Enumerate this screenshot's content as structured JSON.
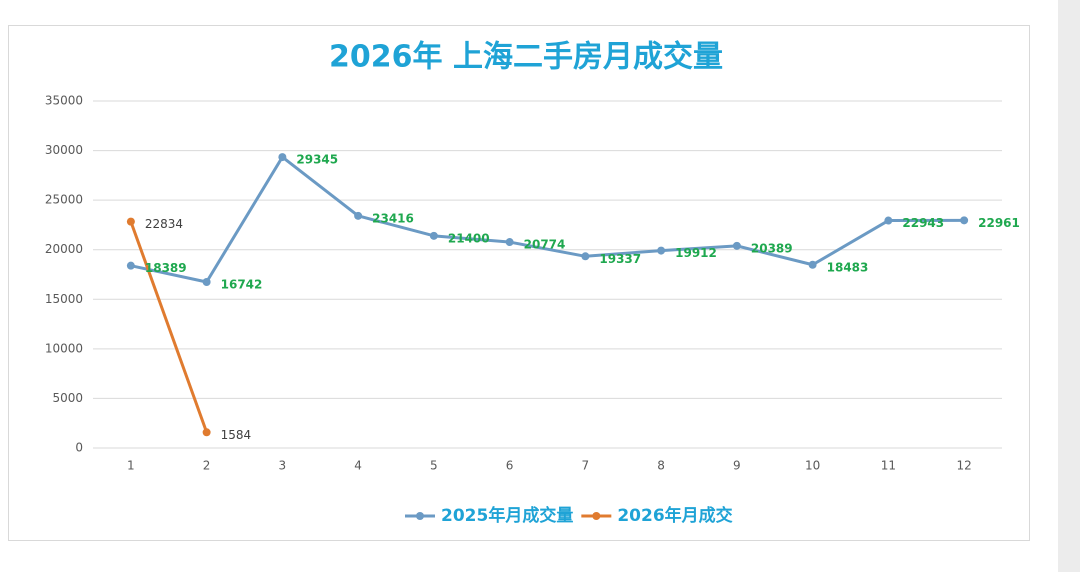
{
  "chart_data": {
    "type": "line",
    "title": "2026年 上海二手房月成交量",
    "categories": [
      "1",
      "2",
      "3",
      "4",
      "5",
      "6",
      "7",
      "8",
      "9",
      "10",
      "11",
      "12"
    ],
    "series": [
      {
        "name": "2025年月成交量",
        "color": "#6b9ac4",
        "label_color": "#1fa84f",
        "values": [
          18389,
          16742,
          29345,
          23416,
          21400,
          20774,
          19337,
          19912,
          20389,
          18483,
          22943,
          22961
        ]
      },
      {
        "name": "2026年月成交",
        "color": "#e07b2f",
        "label_color": "#404040",
        "values": [
          22834,
          1584,
          null,
          null,
          null,
          null,
          null,
          null,
          null,
          null,
          null,
          null
        ]
      }
    ],
    "ylim": [
      0,
      35000
    ],
    "yticks": [
      0,
      5000,
      10000,
      15000,
      20000,
      25000,
      30000,
      35000
    ],
    "grid": true,
    "legend": "bottom"
  }
}
